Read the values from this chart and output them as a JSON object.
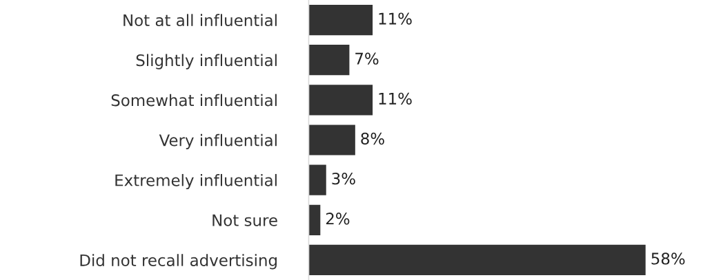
{
  "chart_data": {
    "type": "bar",
    "orientation": "horizontal",
    "categories": [
      "Not at all influential",
      "Slightly influential",
      "Somewhat influential",
      "Very influential",
      "Extremely influential",
      "Not sure",
      "Did not recall advertising"
    ],
    "values": [
      11,
      7,
      11,
      8,
      3,
      2,
      58
    ],
    "value_labels": [
      "11%",
      "7%",
      "11%",
      "8%",
      "3%",
      "2%",
      "58%"
    ],
    "color": "#333333",
    "tick_labels": "y",
    "grid": false,
    "legend": false
  }
}
